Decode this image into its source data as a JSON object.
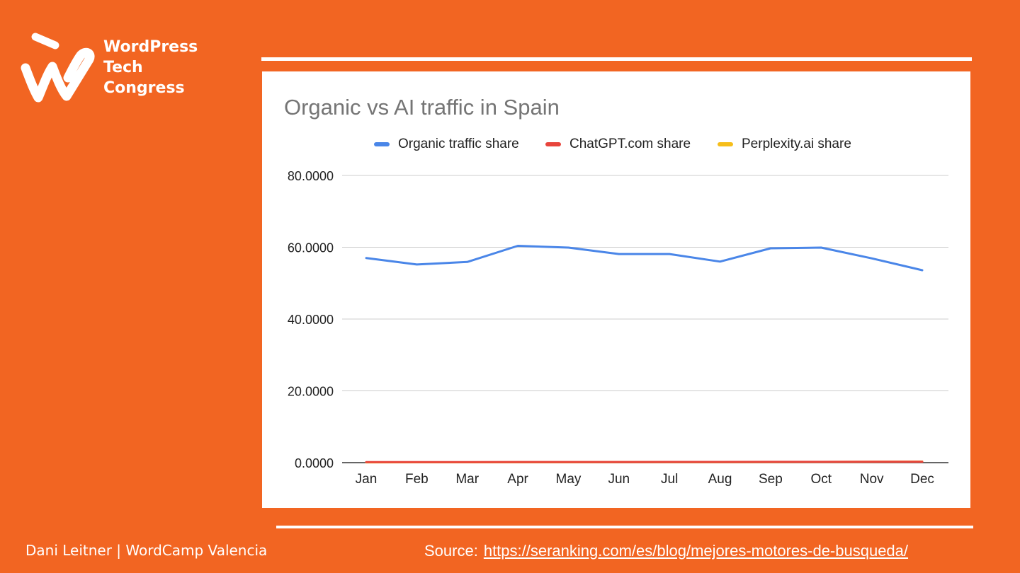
{
  "brand": {
    "logo_icon": "wordpress-tech-congress-logo",
    "lines": [
      "WordPress",
      "Tech",
      "Congress"
    ]
  },
  "footer": {
    "author": "Dani Leitner | WordCamp Valencia",
    "source_label": "Source:",
    "source_link": "https://seranking.com/es/blog/mejores-motores-de-busqueda/"
  },
  "colors": {
    "background": "#F26522",
    "organic": "#4A86E8",
    "chatgpt": "#E8453C",
    "perplexity": "#F6BE1A"
  },
  "chart_data": {
    "type": "line",
    "title": "Organic vs AI traffic in Spain",
    "xlabel": "",
    "ylabel": "",
    "categories": [
      "Jan",
      "Feb",
      "Mar",
      "Apr",
      "May",
      "Jun",
      "Jul",
      "Aug",
      "Sep",
      "Oct",
      "Nov",
      "Dec"
    ],
    "ylim": [
      0,
      80
    ],
    "yticks": [
      "0.0000",
      "20.0000",
      "40.0000",
      "60.0000",
      "80.0000"
    ],
    "grid": true,
    "legend_position": "top",
    "series": [
      {
        "name": "Organic traffic share",
        "color": "#4A86E8",
        "values": [
          57.0,
          55.2,
          55.9,
          60.4,
          59.9,
          58.1,
          58.1,
          56.0,
          59.7,
          59.9,
          56.9,
          53.6
        ]
      },
      {
        "name": "ChatGPT.com share",
        "color": "#E8453C",
        "values": [
          0.15,
          0.15,
          0.16,
          0.17,
          0.18,
          0.18,
          0.19,
          0.2,
          0.21,
          0.22,
          0.24,
          0.26
        ]
      },
      {
        "name": "Perplexity.ai share",
        "color": "#F6BE1A",
        "values": [
          0.08,
          0.09,
          0.1,
          0.11,
          0.12,
          0.13,
          0.14,
          0.16,
          0.18,
          0.2,
          0.24,
          0.3
        ]
      }
    ]
  }
}
